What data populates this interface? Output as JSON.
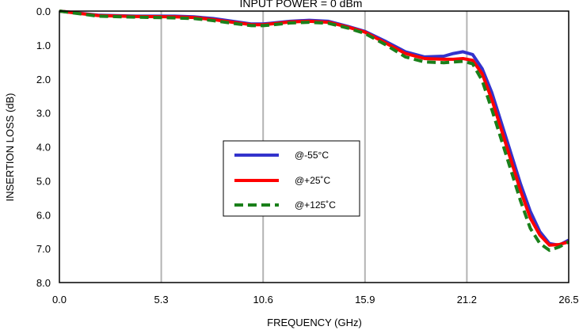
{
  "chart_data": {
    "type": "line",
    "title": "INPUT POWER = 0 dBm",
    "xlabel": "FREQUENCY (GHz)",
    "ylabel": "INSERTION LOSS (dB)",
    "xlim": [
      0,
      26.5
    ],
    "ylim": [
      0,
      8
    ],
    "y_inverted": true,
    "x_ticks": [
      "0.0",
      "5.3",
      "10.6",
      "15.9",
      "21.2",
      "26.5"
    ],
    "y_ticks": [
      "0.0",
      "1.0",
      "2.0",
      "3.0",
      "4.0",
      "5.0",
      "6.0",
      "7.0",
      "8.0"
    ],
    "grid": "vertical",
    "legend_position": "center",
    "series": [
      {
        "name": "@-55°C",
        "color": "#3333cc",
        "style": "solid",
        "x": [
          0,
          2,
          4,
          6,
          7,
          8,
          9,
          10,
          10.6,
          11,
          12,
          13,
          14,
          15,
          15.9,
          17,
          18,
          19,
          20,
          20.5,
          21,
          21.5,
          22,
          22.5,
          23,
          23.5,
          24,
          24.5,
          25,
          25.5,
          26,
          26.5
        ],
        "y": [
          0.0,
          0.12,
          0.15,
          0.15,
          0.17,
          0.22,
          0.3,
          0.38,
          0.38,
          0.36,
          0.3,
          0.27,
          0.3,
          0.45,
          0.6,
          0.9,
          1.2,
          1.35,
          1.33,
          1.25,
          1.2,
          1.28,
          1.7,
          2.4,
          3.3,
          4.2,
          5.1,
          5.9,
          6.5,
          6.85,
          6.9,
          6.75
        ]
      },
      {
        "name": "@+25˚C",
        "color": "#ff0000",
        "style": "solid",
        "x": [
          0,
          2,
          4,
          6,
          7,
          8,
          9,
          10,
          10.6,
          11,
          12,
          13,
          14,
          15,
          15.9,
          17,
          18,
          19,
          20,
          20.5,
          21,
          21.5,
          22,
          22.5,
          23,
          23.5,
          24,
          24.5,
          25,
          25.5,
          26,
          26.5
        ],
        "y": [
          0.0,
          0.13,
          0.16,
          0.17,
          0.19,
          0.25,
          0.33,
          0.4,
          0.4,
          0.38,
          0.32,
          0.3,
          0.33,
          0.47,
          0.62,
          0.95,
          1.25,
          1.4,
          1.42,
          1.42,
          1.4,
          1.45,
          1.85,
          2.6,
          3.5,
          4.4,
          5.3,
          6.1,
          6.6,
          6.9,
          6.88,
          6.8
        ]
      },
      {
        "name": "@+125˚C",
        "color": "#1a801a",
        "style": "dashed",
        "x": [
          0,
          2,
          4,
          6,
          7,
          8,
          9,
          10,
          10.6,
          11,
          12,
          13,
          14,
          15,
          15.9,
          17,
          18,
          19,
          20,
          20.5,
          21,
          21.5,
          22,
          22.5,
          23,
          23.5,
          24,
          24.5,
          25,
          25.5,
          26,
          26.5
        ],
        "y": [
          0.0,
          0.15,
          0.18,
          0.2,
          0.22,
          0.28,
          0.36,
          0.43,
          0.43,
          0.41,
          0.35,
          0.33,
          0.36,
          0.5,
          0.66,
          1.0,
          1.35,
          1.5,
          1.52,
          1.5,
          1.48,
          1.55,
          2.05,
          2.9,
          3.8,
          4.7,
          5.6,
          6.4,
          6.85,
          7.05,
          6.95,
          6.8
        ]
      }
    ]
  }
}
